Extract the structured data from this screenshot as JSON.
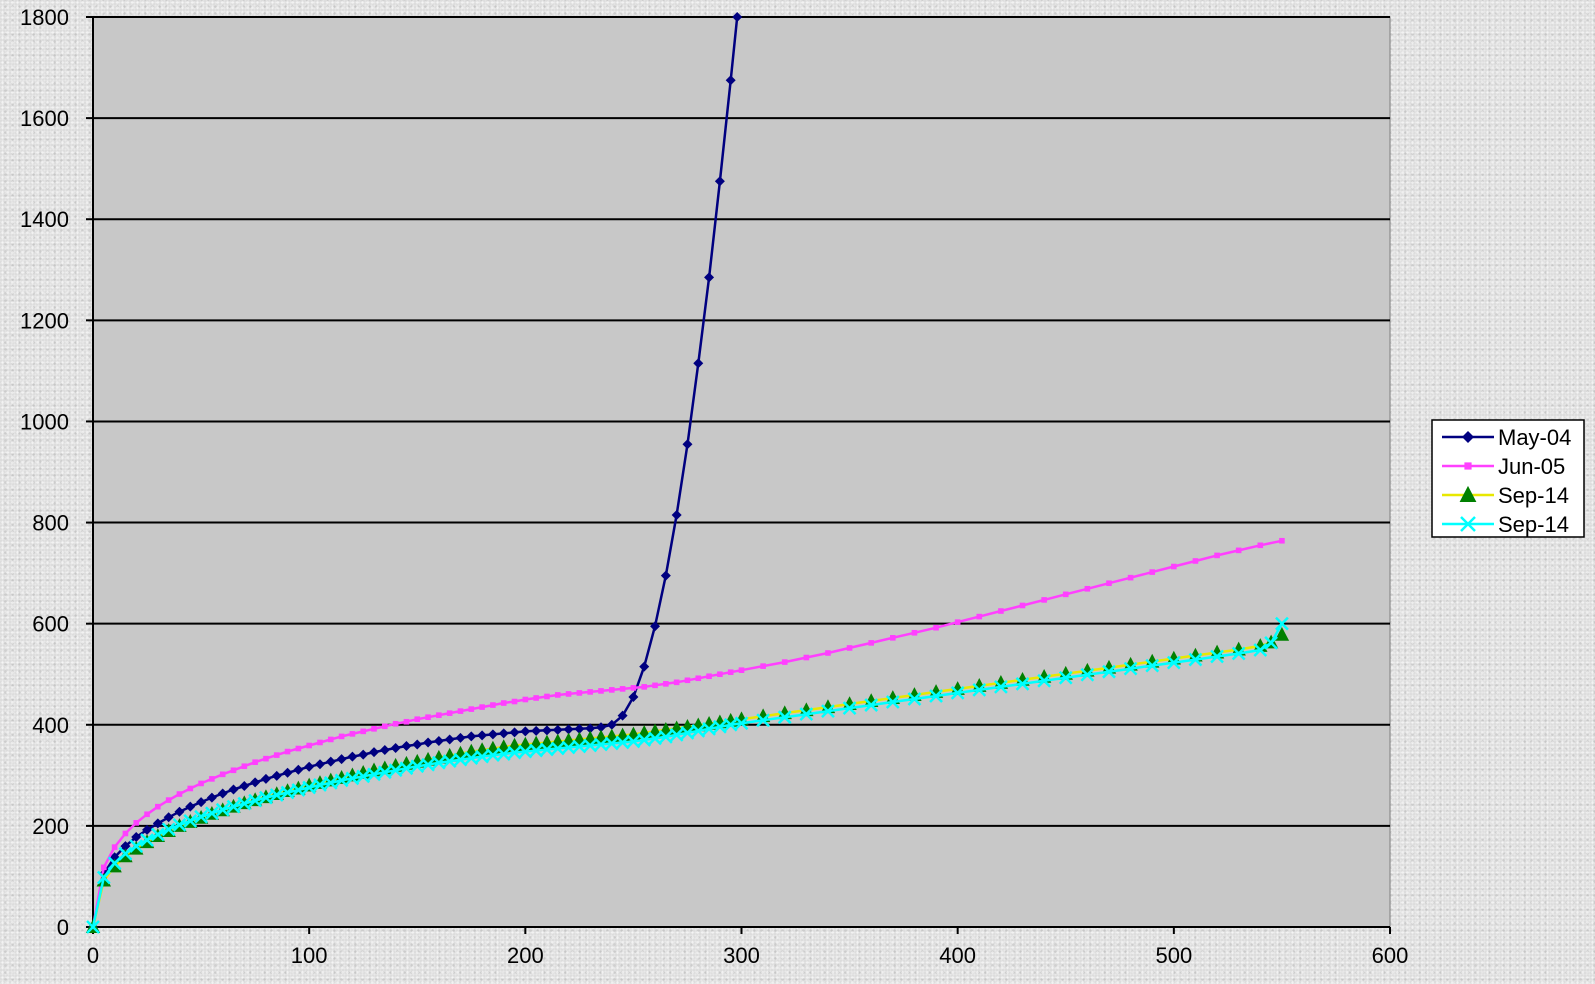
{
  "chart_data": {
    "type": "line",
    "title": "",
    "xlabel": "",
    "ylabel": "",
    "xlim": [
      0,
      600
    ],
    "ylim": [
      0,
      1800
    ],
    "x_ticks": [
      0,
      100,
      200,
      300,
      400,
      500,
      600
    ],
    "y_ticks": [
      0,
      200,
      400,
      600,
      800,
      1000,
      1200,
      1400,
      1600,
      1800
    ],
    "grid": "horizontal",
    "legend_position": "right",
    "plot_background": "#c8c8c8",
    "series": [
      {
        "name": "May-04",
        "color": "#000080",
        "marker": "diamond",
        "points": [
          [
            0,
            0
          ],
          [
            5,
            105
          ],
          [
            10,
            138
          ],
          [
            15,
            160
          ],
          [
            20,
            178
          ],
          [
            25,
            192
          ],
          [
            30,
            205
          ],
          [
            35,
            217
          ],
          [
            40,
            228
          ],
          [
            45,
            238
          ],
          [
            50,
            247
          ],
          [
            55,
            256
          ],
          [
            60,
            264
          ],
          [
            65,
            272
          ],
          [
            70,
            279
          ],
          [
            75,
            286
          ],
          [
            80,
            293
          ],
          [
            85,
            299
          ],
          [
            90,
            305
          ],
          [
            95,
            311
          ],
          [
            100,
            317
          ],
          [
            105,
            322
          ],
          [
            110,
            327
          ],
          [
            115,
            332
          ],
          [
            120,
            337
          ],
          [
            125,
            341
          ],
          [
            130,
            346
          ],
          [
            135,
            350
          ],
          [
            140,
            354
          ],
          [
            145,
            358
          ],
          [
            150,
            361
          ],
          [
            155,
            365
          ],
          [
            160,
            368
          ],
          [
            165,
            371
          ],
          [
            170,
            374
          ],
          [
            175,
            377
          ],
          [
            180,
            379
          ],
          [
            185,
            381
          ],
          [
            190,
            383
          ],
          [
            195,
            385
          ],
          [
            200,
            387
          ],
          [
            205,
            388
          ],
          [
            210,
            389
          ],
          [
            215,
            390
          ],
          [
            220,
            391
          ],
          [
            225,
            392
          ],
          [
            230,
            393
          ],
          [
            235,
            395
          ],
          [
            240,
            400
          ],
          [
            245,
            418
          ],
          [
            250,
            455
          ],
          [
            255,
            515
          ],
          [
            260,
            595
          ],
          [
            265,
            695
          ],
          [
            270,
            815
          ],
          [
            275,
            955
          ],
          [
            280,
            1115
          ],
          [
            285,
            1285
          ],
          [
            290,
            1475
          ],
          [
            295,
            1675
          ],
          [
            298,
            1800
          ]
        ]
      },
      {
        "name": "Jun-05",
        "color": "#ff40ff",
        "marker": "square",
        "points": [
          [
            0,
            0
          ],
          [
            5,
            118
          ],
          [
            10,
            158
          ],
          [
            15,
            185
          ],
          [
            20,
            206
          ],
          [
            25,
            223
          ],
          [
            30,
            238
          ],
          [
            35,
            251
          ],
          [
            40,
            263
          ],
          [
            45,
            274
          ],
          [
            50,
            284
          ],
          [
            55,
            293
          ],
          [
            60,
            302
          ],
          [
            65,
            310
          ],
          [
            70,
            318
          ],
          [
            75,
            326
          ],
          [
            80,
            333
          ],
          [
            85,
            340
          ],
          [
            90,
            347
          ],
          [
            95,
            353
          ],
          [
            100,
            359
          ],
          [
            105,
            365
          ],
          [
            110,
            371
          ],
          [
            115,
            377
          ],
          [
            120,
            382
          ],
          [
            125,
            387
          ],
          [
            130,
            392
          ],
          [
            135,
            397
          ],
          [
            140,
            402
          ],
          [
            145,
            406
          ],
          [
            150,
            411
          ],
          [
            155,
            415
          ],
          [
            160,
            419
          ],
          [
            165,
            423
          ],
          [
            170,
            427
          ],
          [
            175,
            431
          ],
          [
            180,
            435
          ],
          [
            185,
            439
          ],
          [
            190,
            443
          ],
          [
            195,
            446
          ],
          [
            200,
            450
          ],
          [
            205,
            453
          ],
          [
            210,
            456
          ],
          [
            215,
            459
          ],
          [
            220,
            461
          ],
          [
            225,
            463
          ],
          [
            230,
            465
          ],
          [
            235,
            467
          ],
          [
            240,
            469
          ],
          [
            245,
            471
          ],
          [
            250,
            473
          ],
          [
            255,
            475
          ],
          [
            260,
            478
          ],
          [
            265,
            481
          ],
          [
            270,
            484
          ],
          [
            275,
            488
          ],
          [
            280,
            492
          ],
          [
            285,
            496
          ],
          [
            290,
            500
          ],
          [
            295,
            504
          ],
          [
            300,
            508
          ],
          [
            310,
            516
          ],
          [
            320,
            524
          ],
          [
            330,
            533
          ],
          [
            340,
            542
          ],
          [
            350,
            552
          ],
          [
            360,
            562
          ],
          [
            370,
            572
          ],
          [
            380,
            582
          ],
          [
            390,
            592
          ],
          [
            400,
            603
          ],
          [
            410,
            614
          ],
          [
            420,
            625
          ],
          [
            430,
            636
          ],
          [
            440,
            647
          ],
          [
            450,
            658
          ],
          [
            460,
            669
          ],
          [
            470,
            680
          ],
          [
            480,
            691
          ],
          [
            490,
            702
          ],
          [
            500,
            713
          ],
          [
            510,
            724
          ],
          [
            520,
            735
          ],
          [
            530,
            745
          ],
          [
            540,
            755
          ],
          [
            550,
            764
          ]
        ]
      },
      {
        "name": "Sep-14",
        "color": "#e8e800",
        "marker": "triangle",
        "marker_color": "#008000",
        "points": [
          [
            0,
            0
          ],
          [
            5,
            92
          ],
          [
            10,
            120
          ],
          [
            15,
            140
          ],
          [
            20,
            155
          ],
          [
            25,
            168
          ],
          [
            30,
            180
          ],
          [
            35,
            190
          ],
          [
            40,
            200
          ],
          [
            45,
            208
          ],
          [
            50,
            216
          ],
          [
            55,
            224
          ],
          [
            60,
            231
          ],
          [
            65,
            238
          ],
          [
            70,
            245
          ],
          [
            75,
            251
          ],
          [
            80,
            257
          ],
          [
            85,
            263
          ],
          [
            90,
            269
          ],
          [
            95,
            274
          ],
          [
            100,
            280
          ],
          [
            105,
            285
          ],
          [
            110,
            290
          ],
          [
            115,
            295
          ],
          [
            120,
            300
          ],
          [
            125,
            305
          ],
          [
            130,
            310
          ],
          [
            135,
            314
          ],
          [
            140,
            319
          ],
          [
            145,
            323
          ],
          [
            150,
            327
          ],
          [
            155,
            331
          ],
          [
            160,
            335
          ],
          [
            165,
            339
          ],
          [
            170,
            343
          ],
          [
            175,
            347
          ],
          [
            180,
            350
          ],
          [
            185,
            353
          ],
          [
            190,
            356
          ],
          [
            195,
            359
          ],
          [
            200,
            361
          ],
          [
            205,
            363
          ],
          [
            210,
            365
          ],
          [
            215,
            367
          ],
          [
            220,
            369
          ],
          [
            225,
            371
          ],
          [
            230,
            373
          ],
          [
            235,
            375
          ],
          [
            240,
            377
          ],
          [
            245,
            379
          ],
          [
            250,
            381
          ],
          [
            255,
            384
          ],
          [
            260,
            387
          ],
          [
            265,
            390
          ],
          [
            270,
            393
          ],
          [
            275,
            396
          ],
          [
            280,
            399
          ],
          [
            285,
            402
          ],
          [
            290,
            405
          ],
          [
            295,
            408
          ],
          [
            300,
            411
          ],
          [
            310,
            417
          ],
          [
            320,
            423
          ],
          [
            330,
            429
          ],
          [
            340,
            435
          ],
          [
            350,
            441
          ],
          [
            360,
            447
          ],
          [
            370,
            453
          ],
          [
            380,
            459
          ],
          [
            390,
            465
          ],
          [
            400,
            471
          ],
          [
            410,
            477
          ],
          [
            420,
            483
          ],
          [
            430,
            489
          ],
          [
            440,
            495
          ],
          [
            450,
            501
          ],
          [
            460,
            507
          ],
          [
            470,
            513
          ],
          [
            480,
            519
          ],
          [
            490,
            525
          ],
          [
            500,
            531
          ],
          [
            510,
            537
          ],
          [
            520,
            543
          ],
          [
            530,
            549
          ],
          [
            540,
            556
          ],
          [
            545,
            563
          ],
          [
            550,
            578
          ]
        ]
      },
      {
        "name": "Sep-14",
        "color": "#00ffff",
        "marker": "x",
        "points": [
          [
            0,
            0
          ],
          [
            5,
            98
          ],
          [
            10,
            126
          ],
          [
            15,
            145
          ],
          [
            20,
            160
          ],
          [
            25,
            172
          ],
          [
            30,
            183
          ],
          [
            35,
            193
          ],
          [
            40,
            202
          ],
          [
            45,
            210
          ],
          [
            50,
            218
          ],
          [
            55,
            225
          ],
          [
            60,
            232
          ],
          [
            65,
            238
          ],
          [
            70,
            244
          ],
          [
            75,
            250
          ],
          [
            80,
            256
          ],
          [
            85,
            261
          ],
          [
            90,
            266
          ],
          [
            95,
            271
          ],
          [
            100,
            276
          ],
          [
            105,
            281
          ],
          [
            110,
            285
          ],
          [
            115,
            290
          ],
          [
            120,
            294
          ],
          [
            125,
            298
          ],
          [
            130,
            302
          ],
          [
            135,
            306
          ],
          [
            140,
            310
          ],
          [
            145,
            314
          ],
          [
            150,
            318
          ],
          [
            155,
            321
          ],
          [
            160,
            325
          ],
          [
            165,
            328
          ],
          [
            170,
            331
          ],
          [
            175,
            334
          ],
          [
            180,
            337
          ],
          [
            185,
            340
          ],
          [
            190,
            342
          ],
          [
            195,
            345
          ],
          [
            200,
            347
          ],
          [
            205,
            349
          ],
          [
            210,
            351
          ],
          [
            215,
            353
          ],
          [
            220,
            355
          ],
          [
            225,
            357
          ],
          [
            230,
            359
          ],
          [
            235,
            361
          ],
          [
            240,
            363
          ],
          [
            245,
            365
          ],
          [
            250,
            367
          ],
          [
            255,
            370
          ],
          [
            260,
            373
          ],
          [
            265,
            376
          ],
          [
            270,
            380
          ],
          [
            275,
            384
          ],
          [
            280,
            388
          ],
          [
            285,
            392
          ],
          [
            290,
            396
          ],
          [
            295,
            400
          ],
          [
            300,
            403
          ],
          [
            310,
            409
          ],
          [
            320,
            415
          ],
          [
            330,
            421
          ],
          [
            340,
            427
          ],
          [
            350,
            433
          ],
          [
            360,
            439
          ],
          [
            370,
            445
          ],
          [
            380,
            451
          ],
          [
            390,
            457
          ],
          [
            400,
            463
          ],
          [
            410,
            469
          ],
          [
            420,
            475
          ],
          [
            430,
            481
          ],
          [
            440,
            487
          ],
          [
            450,
            493
          ],
          [
            460,
            499
          ],
          [
            470,
            505
          ],
          [
            480,
            511
          ],
          [
            490,
            517
          ],
          [
            500,
            523
          ],
          [
            510,
            529
          ],
          [
            520,
            535
          ],
          [
            530,
            541
          ],
          [
            540,
            548
          ],
          [
            545,
            562
          ],
          [
            550,
            600
          ]
        ]
      }
    ]
  }
}
